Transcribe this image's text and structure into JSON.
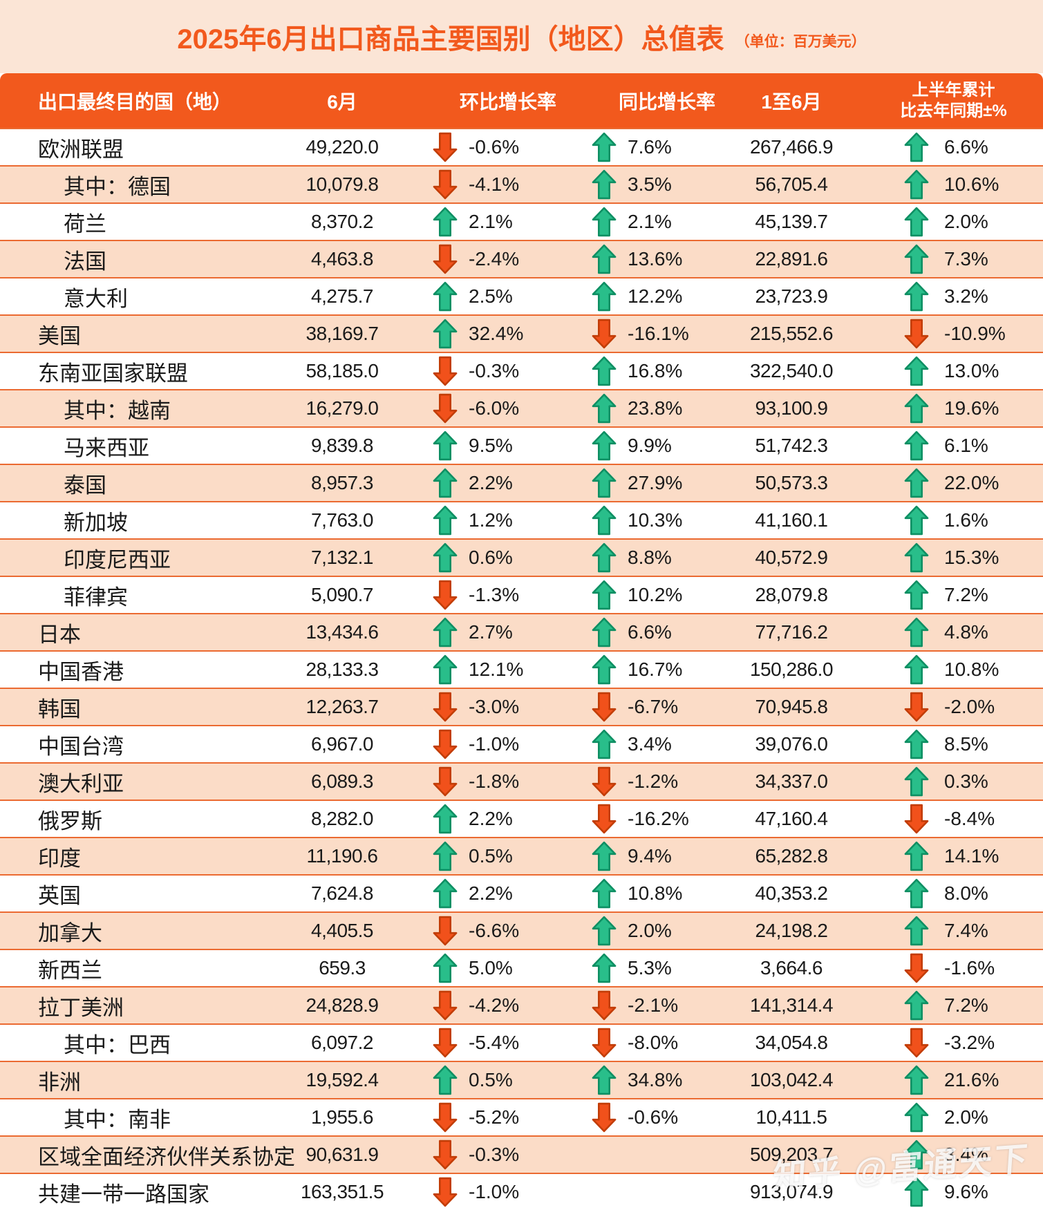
{
  "title": "2025年6月出口商品主要国别（地区）总值表",
  "unit_label": "（单位：百万美元）",
  "watermark": "知乎 @富通天下",
  "colors": {
    "header_bg": "#F2591D",
    "title_text": "#F2591D",
    "band_bg": "#FBE5D6",
    "row_bg": "#FFFFFF",
    "row_alt_bg": "#FBDCC7",
    "separator": "#EB6A31",
    "up_green": "#29BE8A",
    "down_orange": "#F1511B",
    "text": "#1A1A1A"
  },
  "chart_data": {
    "type": "table",
    "title": "2025年6月出口商品主要国别（地区）总值表",
    "unit": "百万美元",
    "columns": [
      "出口最终目的国（地）",
      "6月",
      "环比增长率",
      "同比增长率",
      "1至6月",
      "上半年累计\n比去年同期±%"
    ],
    "rows": [
      {
        "name": "欧洲联盟",
        "indent": false,
        "jun": "49,220.0",
        "mom": {
          "dir": "down",
          "value": "-0.6%"
        },
        "yoy": {
          "dir": "up",
          "value": "7.6%"
        },
        "cum": "267,466.9",
        "half": {
          "dir": "up",
          "value": "6.6%"
        }
      },
      {
        "name": "其中：德国",
        "indent": true,
        "jun": "10,079.8",
        "mom": {
          "dir": "down",
          "value": "-4.1%"
        },
        "yoy": {
          "dir": "up",
          "value": "3.5%"
        },
        "cum": "56,705.4",
        "half": {
          "dir": "up",
          "value": "10.6%"
        }
      },
      {
        "name": "荷兰",
        "indent": true,
        "jun": "8,370.2",
        "mom": {
          "dir": "up",
          "value": "2.1%"
        },
        "yoy": {
          "dir": "up",
          "value": "2.1%"
        },
        "cum": "45,139.7",
        "half": {
          "dir": "up",
          "value": "2.0%"
        }
      },
      {
        "name": "法国",
        "indent": true,
        "jun": "4,463.8",
        "mom": {
          "dir": "down",
          "value": "-2.4%"
        },
        "yoy": {
          "dir": "up",
          "value": "13.6%"
        },
        "cum": "22,891.6",
        "half": {
          "dir": "up",
          "value": "7.3%"
        }
      },
      {
        "name": "意大利",
        "indent": true,
        "jun": "4,275.7",
        "mom": {
          "dir": "up",
          "value": "2.5%"
        },
        "yoy": {
          "dir": "up",
          "value": "12.2%"
        },
        "cum": "23,723.9",
        "half": {
          "dir": "up",
          "value": "3.2%"
        }
      },
      {
        "name": "美国",
        "indent": false,
        "jun": "38,169.7",
        "mom": {
          "dir": "up",
          "value": "32.4%"
        },
        "yoy": {
          "dir": "down",
          "value": "-16.1%"
        },
        "cum": "215,552.6",
        "half": {
          "dir": "down",
          "value": "-10.9%"
        }
      },
      {
        "name": "东南亚国家联盟",
        "indent": false,
        "jun": "58,185.0",
        "mom": {
          "dir": "down",
          "value": "-0.3%"
        },
        "yoy": {
          "dir": "up",
          "value": "16.8%"
        },
        "cum": "322,540.0",
        "half": {
          "dir": "up",
          "value": "13.0%"
        }
      },
      {
        "name": "其中：越南",
        "indent": true,
        "jun": "16,279.0",
        "mom": {
          "dir": "down",
          "value": "-6.0%"
        },
        "yoy": {
          "dir": "up",
          "value": "23.8%"
        },
        "cum": "93,100.9",
        "half": {
          "dir": "up",
          "value": "19.6%"
        }
      },
      {
        "name": "马来西亚",
        "indent": true,
        "jun": "9,839.8",
        "mom": {
          "dir": "up",
          "value": "9.5%"
        },
        "yoy": {
          "dir": "up",
          "value": "9.9%"
        },
        "cum": "51,742.3",
        "half": {
          "dir": "up",
          "value": "6.1%"
        }
      },
      {
        "name": "泰国",
        "indent": true,
        "jun": "8,957.3",
        "mom": {
          "dir": "up",
          "value": "2.2%"
        },
        "yoy": {
          "dir": "up",
          "value": "27.9%"
        },
        "cum": "50,573.3",
        "half": {
          "dir": "up",
          "value": "22.0%"
        }
      },
      {
        "name": "新加坡",
        "indent": true,
        "jun": "7,763.0",
        "mom": {
          "dir": "up",
          "value": "1.2%"
        },
        "yoy": {
          "dir": "up",
          "value": "10.3%"
        },
        "cum": "41,160.1",
        "half": {
          "dir": "up",
          "value": "1.6%"
        }
      },
      {
        "name": "印度尼西亚",
        "indent": true,
        "jun": "7,132.1",
        "mom": {
          "dir": "up",
          "value": "0.6%"
        },
        "yoy": {
          "dir": "up",
          "value": "8.8%"
        },
        "cum": "40,572.9",
        "half": {
          "dir": "up",
          "value": "15.3%"
        }
      },
      {
        "name": "菲律宾",
        "indent": true,
        "jun": "5,090.7",
        "mom": {
          "dir": "down",
          "value": "-1.3%"
        },
        "yoy": {
          "dir": "up",
          "value": "10.2%"
        },
        "cum": "28,079.8",
        "half": {
          "dir": "up",
          "value": "7.2%"
        }
      },
      {
        "name": "日本",
        "indent": false,
        "jun": "13,434.6",
        "mom": {
          "dir": "up",
          "value": "2.7%"
        },
        "yoy": {
          "dir": "up",
          "value": "6.6%"
        },
        "cum": "77,716.2",
        "half": {
          "dir": "up",
          "value": "4.8%"
        }
      },
      {
        "name": "中国香港",
        "indent": false,
        "jun": "28,133.3",
        "mom": {
          "dir": "up",
          "value": "12.1%"
        },
        "yoy": {
          "dir": "up",
          "value": "16.7%"
        },
        "cum": "150,286.0",
        "half": {
          "dir": "up",
          "value": "10.8%"
        }
      },
      {
        "name": "韩国",
        "indent": false,
        "jun": "12,263.7",
        "mom": {
          "dir": "down",
          "value": "-3.0%"
        },
        "yoy": {
          "dir": "down",
          "value": "-6.7%"
        },
        "cum": "70,945.8",
        "half": {
          "dir": "down",
          "value": "-2.0%"
        }
      },
      {
        "name": "中国台湾",
        "indent": false,
        "jun": "6,967.0",
        "mom": {
          "dir": "down",
          "value": "-1.0%"
        },
        "yoy": {
          "dir": "up",
          "value": "3.4%"
        },
        "cum": "39,076.0",
        "half": {
          "dir": "up",
          "value": "8.5%"
        }
      },
      {
        "name": "澳大利亚",
        "indent": false,
        "jun": "6,089.3",
        "mom": {
          "dir": "down",
          "value": "-1.8%"
        },
        "yoy": {
          "dir": "down",
          "value": "-1.2%"
        },
        "cum": "34,337.0",
        "half": {
          "dir": "up",
          "value": "0.3%"
        }
      },
      {
        "name": "俄罗斯",
        "indent": false,
        "jun": "8,282.0",
        "mom": {
          "dir": "up",
          "value": "2.2%"
        },
        "yoy": {
          "dir": "down",
          "value": "-16.2%"
        },
        "cum": "47,160.4",
        "half": {
          "dir": "down",
          "value": "-8.4%"
        }
      },
      {
        "name": "印度",
        "indent": false,
        "jun": "11,190.6",
        "mom": {
          "dir": "up",
          "value": "0.5%"
        },
        "yoy": {
          "dir": "up",
          "value": "9.4%"
        },
        "cum": "65,282.8",
        "half": {
          "dir": "up",
          "value": "14.1%"
        }
      },
      {
        "name": "英国",
        "indent": false,
        "jun": "7,624.8",
        "mom": {
          "dir": "up",
          "value": "2.2%"
        },
        "yoy": {
          "dir": "up",
          "value": "10.8%"
        },
        "cum": "40,353.2",
        "half": {
          "dir": "up",
          "value": "8.0%"
        }
      },
      {
        "name": "加拿大",
        "indent": false,
        "jun": "4,405.5",
        "mom": {
          "dir": "down",
          "value": "-6.6%"
        },
        "yoy": {
          "dir": "up",
          "value": "2.0%"
        },
        "cum": "24,198.2",
        "half": {
          "dir": "up",
          "value": "7.4%"
        }
      },
      {
        "name": "新西兰",
        "indent": false,
        "jun": "659.3",
        "mom": {
          "dir": "up",
          "value": "5.0%"
        },
        "yoy": {
          "dir": "up",
          "value": "5.3%"
        },
        "cum": "3,664.6",
        "half": {
          "dir": "down",
          "value": "-1.6%"
        }
      },
      {
        "name": "拉丁美洲",
        "indent": false,
        "jun": "24,828.9",
        "mom": {
          "dir": "down",
          "value": "-4.2%"
        },
        "yoy": {
          "dir": "down",
          "value": "-2.1%"
        },
        "cum": "141,314.4",
        "half": {
          "dir": "up",
          "value": "7.2%"
        }
      },
      {
        "name": "其中：巴西",
        "indent": true,
        "jun": "6,097.2",
        "mom": {
          "dir": "down",
          "value": "-5.4%"
        },
        "yoy": {
          "dir": "down",
          "value": "-8.0%"
        },
        "cum": "34,054.8",
        "half": {
          "dir": "down",
          "value": "-3.2%"
        }
      },
      {
        "name": "非洲",
        "indent": false,
        "jun": "19,592.4",
        "mom": {
          "dir": "up",
          "value": "0.5%"
        },
        "yoy": {
          "dir": "up",
          "value": "34.8%"
        },
        "cum": "103,042.4",
        "half": {
          "dir": "up",
          "value": "21.6%"
        }
      },
      {
        "name": "其中：南非",
        "indent": true,
        "jun": "1,955.6",
        "mom": {
          "dir": "down",
          "value": "-5.2%"
        },
        "yoy": {
          "dir": "down",
          "value": "-0.6%"
        },
        "cum": "10,411.5",
        "half": {
          "dir": "up",
          "value": "2.0%"
        }
      },
      {
        "name": "区域全面经济伙伴关系协定",
        "indent": false,
        "jun": "90,631.9",
        "mom": {
          "dir": "down",
          "value": "-0.3%"
        },
        "yoy": null,
        "cum": "509,203.7",
        "half": {
          "dir": "up",
          "value": "3.4%"
        }
      },
      {
        "name": "共建一带一路国家",
        "indent": false,
        "jun": "163,351.5",
        "mom": {
          "dir": "down",
          "value": "-1.0%"
        },
        "yoy": null,
        "cum": "913,074.9",
        "half": {
          "dir": "up",
          "value": "9.6%"
        }
      }
    ]
  }
}
